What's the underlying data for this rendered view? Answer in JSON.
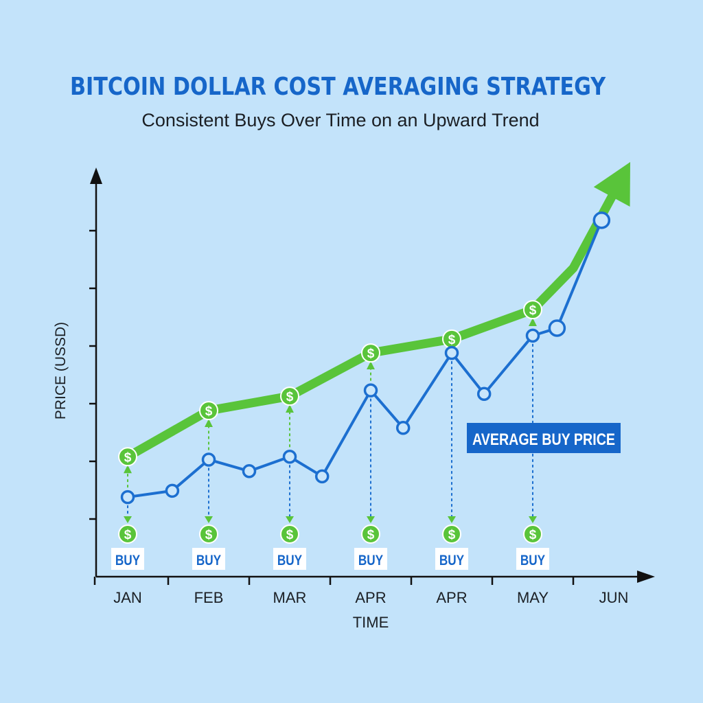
{
  "chart_data": {
    "type": "line",
    "title": "BITCOIN DOLLAR COST AVERAGING STRATEGY",
    "subtitle": "Consistent Buys Over Time on an Upward Trend",
    "xlabel": "TIME",
    "ylabel": "PRICE (USSD)",
    "x_ticks": [
      "JAN",
      "FEB",
      "MAR",
      "APR",
      "APR",
      "MAY",
      "JUN"
    ],
    "xlim": [
      0,
      6.5
    ],
    "ylim": [
      0,
      100
    ],
    "y_tick_values": [
      10,
      20,
      30,
      40,
      50,
      60
    ],
    "grid": false,
    "series": [
      {
        "color": "#1c6fd0",
        "points": [
          {
            "x": 0.0,
            "y": 13.8
          },
          {
            "x": 0.55,
            "y": 14.9
          },
          {
            "x": 1.0,
            "y": 20.3
          },
          {
            "x": 1.5,
            "y": 18.3
          },
          {
            "x": 2.0,
            "y": 20.8
          },
          {
            "x": 2.4,
            "y": 17.4
          },
          {
            "x": 3.0,
            "y": 32.3
          },
          {
            "x": 3.4,
            "y": 25.8
          },
          {
            "x": 4.0,
            "y": 38.8
          },
          {
            "x": 4.4,
            "y": 31.7
          },
          {
            "x": 5.0,
            "y": 41.8
          },
          {
            "x": 5.3,
            "y": 43.1
          },
          {
            "x": 5.85,
            "y": 61.8
          }
        ]
      },
      {
        "color": "#59c43a",
        "points": [
          {
            "x": 0.0,
            "y": 20.8
          },
          {
            "x": 1.0,
            "y": 28.8
          },
          {
            "x": 2.0,
            "y": 31.3
          },
          {
            "x": 3.0,
            "y": 38.8
          },
          {
            "x": 4.0,
            "y": 41.2
          },
          {
            "x": 5.0,
            "y": 46.3
          },
          {
            "x": 5.5,
            "y": 53.5
          },
          {
            "x": 6.0,
            "y": 66.5
          }
        ]
      }
    ],
    "buys": [
      {
        "x": 0.0,
        "label": "BUY",
        "symbol": "$"
      },
      {
        "x": 1.0,
        "label": "BUY",
        "symbol": "$"
      },
      {
        "x": 2.0,
        "label": "BUY",
        "symbol": "$"
      },
      {
        "x": 3.0,
        "label": "BUY",
        "symbol": "$"
      },
      {
        "x": 4.0,
        "label": "BUY",
        "symbol": "$"
      },
      {
        "x": 5.0,
        "label": "BUY",
        "symbol": "$"
      }
    ],
    "annotation": {
      "text": "AVERAGE BUY PRICE"
    },
    "colors": {
      "background": "#c3e3fa",
      "title": "#1666c9",
      "axis": "#111111",
      "blue": "#1c6fd0",
      "green": "#59c43a",
      "dot_fill": "#c9e6fb"
    }
  }
}
